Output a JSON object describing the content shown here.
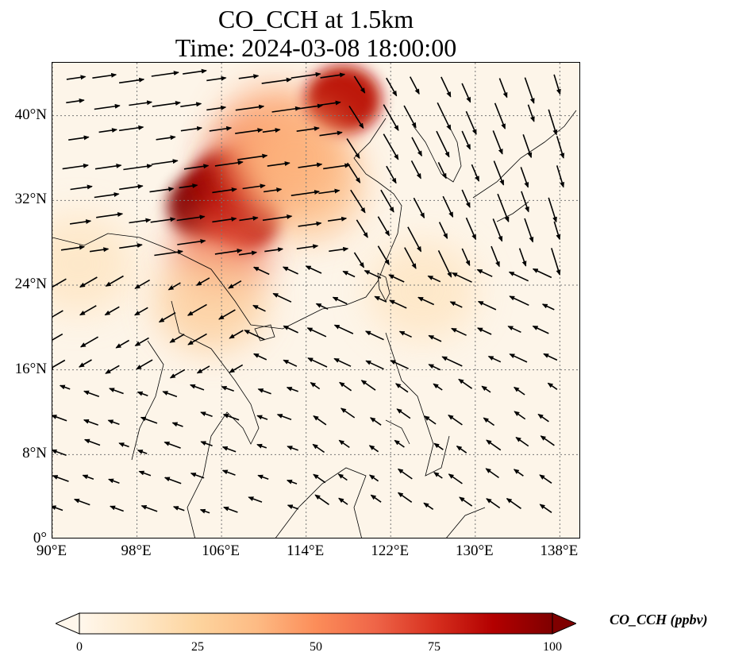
{
  "title": "CO_CCH at 1.5km",
  "subtitle": "Time: 2024-03-08 18:00:00",
  "map": {
    "lon_range": [
      90,
      140
    ],
    "lat_range": [
      0,
      45
    ],
    "lon_ticks": [
      "90°E",
      "98°E",
      "106°E",
      "114°E",
      "122°E",
      "130°E",
      "138°E"
    ],
    "lat_ticks": [
      "0°",
      "8°N",
      "16°N",
      "24°N",
      "32°N",
      "40°N"
    ],
    "gridlines": true,
    "gridline_style": "dotted",
    "vector_color": "#000000",
    "plume": [
      {
        "lon": 104.5,
        "lat": 31.5,
        "value": 100
      },
      {
        "lon": 106.5,
        "lat": 33.5,
        "value": 95
      },
      {
        "lon": 108.0,
        "lat": 30.5,
        "value": 90
      },
      {
        "lon": 109.0,
        "lat": 35.0,
        "value": 75
      },
      {
        "lon": 106.0,
        "lat": 27.5,
        "value": 65
      },
      {
        "lon": 111.0,
        "lat": 38.0,
        "value": 45
      },
      {
        "lon": 114.0,
        "lat": 33.0,
        "value": 35
      },
      {
        "lon": 117.5,
        "lat": 41.5,
        "value": 85
      },
      {
        "lon": 113.0,
        "lat": 36.0,
        "value": 40
      },
      {
        "lon": 92.5,
        "lat": 26.0,
        "value": 15
      },
      {
        "lon": 105.0,
        "lat": 22.5,
        "value": 30
      },
      {
        "lon": 125.0,
        "lat": 23.5,
        "value": 15
      }
    ]
  },
  "colorbar": {
    "label": "CO_CCH (ppbv)",
    "min": 0,
    "max": 100,
    "ticks": [
      "0",
      "25",
      "50",
      "75",
      "100"
    ],
    "colormap": [
      "#fff7ec",
      "#fee8c8",
      "#fdd49e",
      "#fdbb84",
      "#fc8d59",
      "#ef6548",
      "#d7301f",
      "#b30000",
      "#7f0000"
    ],
    "extend": "both"
  }
}
